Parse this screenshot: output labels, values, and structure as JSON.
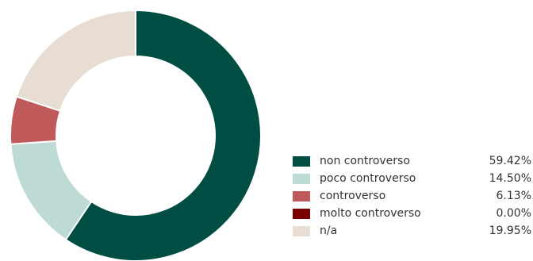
{
  "chart_data": {
    "type": "pie",
    "donut": true,
    "title": "",
    "categories": [
      "non controverso",
      "poco controverso",
      "controverso",
      "molto controverso",
      "n/a"
    ],
    "values": [
      59.42,
      14.5,
      6.13,
      0.0,
      19.95
    ],
    "value_labels": [
      "59.42%",
      "14.50%",
      "6.13%",
      "0.00%",
      "19.95%"
    ],
    "colors": [
      "#004d43",
      "#bddad5",
      "#c0595a",
      "#7b0000",
      "#e8ddd2"
    ],
    "legend": "right",
    "unit": "%"
  }
}
